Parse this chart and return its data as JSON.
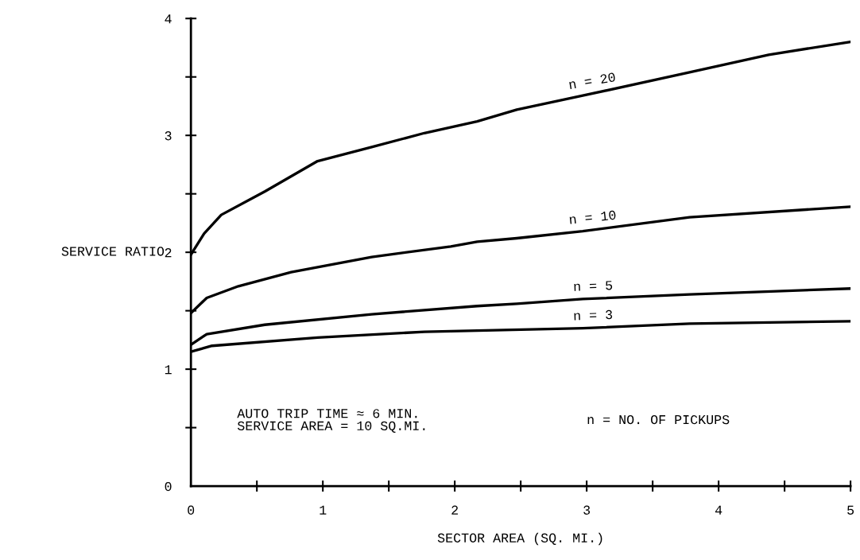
{
  "chart_data": {
    "type": "line",
    "xlabel": "SECTOR AREA (SQ. MI.)",
    "ylabel": "SERVICE RATIO",
    "xlim": [
      0,
      5
    ],
    "ylim": [
      0,
      4
    ],
    "xticks": [
      0,
      {
        "value": 0.5,
        "label": null
      },
      1,
      {
        "value": 1.5,
        "label": null
      },
      2,
      {
        "value": 2.5,
        "label": null
      },
      3,
      {
        "value": 3.5,
        "label": null
      },
      4,
      {
        "value": 4.5,
        "label": null
      },
      5
    ],
    "yticks": [
      0,
      {
        "value": 0.5,
        "label": null
      },
      1,
      {
        "value": 1.5,
        "label": null
      },
      2,
      {
        "value": 2.5,
        "label": null
      },
      3,
      {
        "value": 3.5,
        "label": null
      },
      4
    ],
    "grid": false,
    "legend": false,
    "marker": "none",
    "line_style": "solid",
    "series": [
      {
        "name": "n = 20",
        "color": "#000000",
        "x": [
          0,
          0.1,
          0.23,
          0.56,
          0.96,
          1.37,
          1.77,
          2.17,
          2.47,
          2.97,
          3.78,
          4.38,
          5
        ],
        "values": [
          1.98,
          2.16,
          2.32,
          2.52,
          2.78,
          2.9,
          3.02,
          3.12,
          3.22,
          3.34,
          3.54,
          3.69,
          3.8
        ]
      },
      {
        "name": "n = 10",
        "color": "#000000",
        "x": [
          0,
          0.12,
          0.36,
          0.76,
          1.37,
          1.97,
          2.17,
          2.47,
          2.97,
          3.78,
          5
        ],
        "values": [
          1.48,
          1.61,
          1.71,
          1.83,
          1.96,
          2.05,
          2.09,
          2.12,
          2.18,
          2.3,
          2.39
        ]
      },
      {
        "name": "n = 5",
        "color": "#000000",
        "x": [
          0,
          0.12,
          0.56,
          1.37,
          2.17,
          2.47,
          2.97,
          3.78,
          5
        ],
        "values": [
          1.21,
          1.3,
          1.38,
          1.47,
          1.54,
          1.56,
          1.6,
          1.64,
          1.69
        ]
      },
      {
        "name": "n = 3",
        "color": "#000000",
        "x": [
          0,
          0.16,
          0.96,
          1.77,
          2.17,
          2.97,
          3.78,
          5
        ],
        "values": [
          1.15,
          1.2,
          1.27,
          1.32,
          1.33,
          1.35,
          1.39,
          1.41
        ]
      }
    ],
    "annotations": [
      "AUTO TRIP TIME ≈ 6 MIN.\nSERVICE AREA = 10 SQ.MI.",
      "n = NO. OF PICKUPS"
    ]
  }
}
